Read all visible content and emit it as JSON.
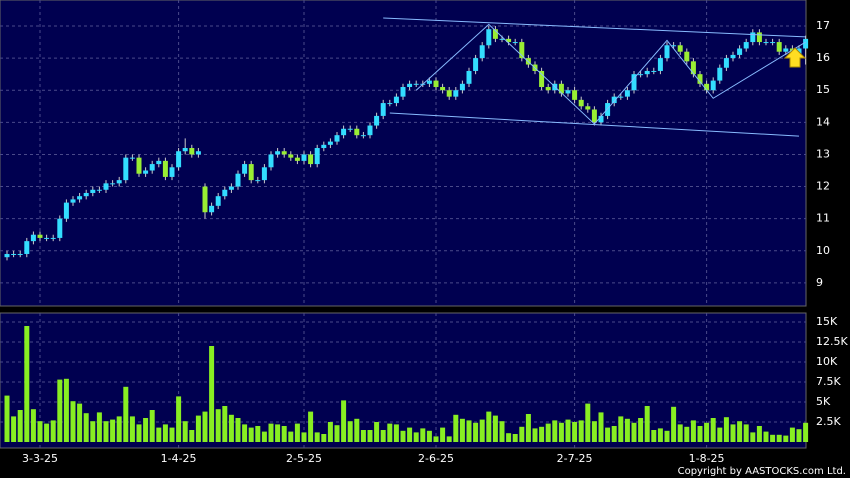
{
  "chart_data": {
    "type": "candlestick",
    "categories": [
      null,
      null,
      null,
      null,
      null,
      "3-3-25",
      null,
      null,
      null,
      null,
      null,
      null,
      null,
      null,
      null,
      null,
      null,
      null,
      null,
      null,
      null,
      null,
      null,
      null,
      null,
      null,
      "1-4-25",
      null,
      null,
      null,
      null,
      null,
      null,
      null,
      null,
      null,
      null,
      null,
      null,
      null,
      null,
      null,
      null,
      null,
      null,
      "2-5-25",
      null,
      null,
      null,
      null,
      null,
      null,
      null,
      null,
      null,
      null,
      null,
      null,
      null,
      null,
      null,
      null,
      null,
      null,
      null,
      "2-6-25",
      null,
      null,
      null,
      null,
      null,
      null,
      null,
      null,
      null,
      null,
      null,
      null,
      null,
      null,
      null,
      null,
      null,
      null,
      null,
      null,
      "2-7-25",
      null,
      null,
      null,
      null,
      null,
      null,
      null,
      null,
      null,
      null,
      null,
      null,
      null,
      null,
      null,
      null,
      null,
      null,
      null,
      "1-8-25",
      null,
      null,
      null,
      null,
      null,
      null,
      null,
      null,
      null,
      null,
      null,
      null,
      null,
      null,
      null
    ],
    "open": [
      9.8,
      9.9,
      9.9,
      9.9,
      10.3,
      10.5,
      10.4,
      10.4,
      10.4,
      11.0,
      11.5,
      11.6,
      11.7,
      11.8,
      11.9,
      11.9,
      12.1,
      12.1,
      12.2,
      12.9,
      12.9,
      12.4,
      12.5,
      12.7,
      12.8,
      12.3,
      12.6,
      13.1,
      13.2,
      13.0,
      12.0,
      11.2,
      11.4,
      11.7,
      11.9,
      12.0,
      12.4,
      12.7,
      12.2,
      12.2,
      12.6,
      13.0,
      13.1,
      13.0,
      12.9,
      12.8,
      13.0,
      12.7,
      13.2,
      13.3,
      13.4,
      13.6,
      13.8,
      13.8,
      13.6,
      13.6,
      13.9,
      14.2,
      14.6,
      14.6,
      14.8,
      15.1,
      15.2,
      15.2,
      15.2,
      15.3,
      15.1,
      15.0,
      14.8,
      15.0,
      15.2,
      15.6,
      16.0,
      16.4,
      16.9,
      16.6,
      16.6,
      16.5,
      16.5,
      16.0,
      15.8,
      15.6,
      15.1,
      15.0,
      15.2,
      14.9,
      15.0,
      14.7,
      14.5,
      14.4,
      14.0,
      14.2,
      14.6,
      14.8,
      14.8,
      15.0,
      15.5,
      15.5,
      15.6,
      15.6,
      16.0,
      16.4,
      16.4,
      16.2,
      15.9,
      15.5,
      15.2,
      15.0,
      15.3,
      15.7,
      16.0,
      16.1,
      16.3,
      16.5,
      16.8,
      16.5,
      16.5,
      16.5,
      16.2,
      16.3,
      16.1,
      16.3
    ],
    "high": [
      10.0,
      10.0,
      10.0,
      10.4,
      10.6,
      10.6,
      10.5,
      10.5,
      11.1,
      11.6,
      11.7,
      11.8,
      11.9,
      12.0,
      12.0,
      12.2,
      12.2,
      12.3,
      13.0,
      13.0,
      13.0,
      12.6,
      12.8,
      12.9,
      12.9,
      12.7,
      13.2,
      13.5,
      13.3,
      13.2,
      12.1,
      11.5,
      11.8,
      12.0,
      12.1,
      12.5,
      12.8,
      12.8,
      12.3,
      12.7,
      13.1,
      13.2,
      13.2,
      13.1,
      13.0,
      13.1,
      13.1,
      13.3,
      13.4,
      13.5,
      13.7,
      13.9,
      13.9,
      13.9,
      13.7,
      14.0,
      14.3,
      14.7,
      14.7,
      14.9,
      15.2,
      15.3,
      15.3,
      15.3,
      15.4,
      15.4,
      15.2,
      15.1,
      15.1,
      15.3,
      15.7,
      16.1,
      16.5,
      17.0,
      17.0,
      16.7,
      16.7,
      16.6,
      16.6,
      16.1,
      15.9,
      15.7,
      15.2,
      15.3,
      15.3,
      15.1,
      15.1,
      14.8,
      14.6,
      14.5,
      14.3,
      14.7,
      14.9,
      14.9,
      15.1,
      15.6,
      15.6,
      15.7,
      15.7,
      16.1,
      16.5,
      16.5,
      16.5,
      16.3,
      16.0,
      15.6,
      15.3,
      15.4,
      15.8,
      16.1,
      16.2,
      16.4,
      16.6,
      16.9,
      16.9,
      16.6,
      16.6,
      16.6,
      16.4,
      16.4,
      16.4,
      16.7
    ],
    "low": [
      9.7,
      9.8,
      9.8,
      9.8,
      10.2,
      10.3,
      10.3,
      10.3,
      10.3,
      10.9,
      11.4,
      11.5,
      11.6,
      11.7,
      11.8,
      11.8,
      12.0,
      12.0,
      12.1,
      12.8,
      12.3,
      12.3,
      12.4,
      12.6,
      12.2,
      12.2,
      12.5,
      13.0,
      12.9,
      12.9,
      11.0,
      11.1,
      11.3,
      11.6,
      11.8,
      11.9,
      12.3,
      12.1,
      12.1,
      12.1,
      12.5,
      12.9,
      12.9,
      12.8,
      12.7,
      12.7,
      12.6,
      12.6,
      13.1,
      13.2,
      13.3,
      13.5,
      13.7,
      13.5,
      13.5,
      13.5,
      13.8,
      14.1,
      14.5,
      14.5,
      14.7,
      15.0,
      15.1,
      15.1,
      15.1,
      15.0,
      14.9,
      14.7,
      14.7,
      14.9,
      15.1,
      15.5,
      15.9,
      16.3,
      16.5,
      16.5,
      16.4,
      16.4,
      15.9,
      15.7,
      15.5,
      15.0,
      14.9,
      14.9,
      14.8,
      14.8,
      14.6,
      14.4,
      14.3,
      13.9,
      13.9,
      14.1,
      14.5,
      14.7,
      14.7,
      14.9,
      15.4,
      15.4,
      15.5,
      15.5,
      15.9,
      16.3,
      16.1,
      15.8,
      15.4,
      15.1,
      14.9,
      14.9,
      15.2,
      15.6,
      15.9,
      16.0,
      16.2,
      16.4,
      16.4,
      16.4,
      16.4,
      16.1,
      16.1,
      16.0,
      16.0,
      15.8
    ],
    "close": [
      9.9,
      9.9,
      9.9,
      10.3,
      10.5,
      10.4,
      10.4,
      10.4,
      11.0,
      11.5,
      11.6,
      11.7,
      11.8,
      11.9,
      11.9,
      12.1,
      12.1,
      12.2,
      12.9,
      12.9,
      12.4,
      12.5,
      12.7,
      12.8,
      12.3,
      12.6,
      13.1,
      13.2,
      13.0,
      13.1,
      11.2,
      11.4,
      11.7,
      11.9,
      12.0,
      12.4,
      12.7,
      12.2,
      12.2,
      12.6,
      13.0,
      13.1,
      13.0,
      12.9,
      12.8,
      13.0,
      12.7,
      13.2,
      13.3,
      13.4,
      13.6,
      13.8,
      13.8,
      13.6,
      13.6,
      13.9,
      14.2,
      14.6,
      14.6,
      14.8,
      15.1,
      15.2,
      15.2,
      15.2,
      15.3,
      15.1,
      15.0,
      14.8,
      15.0,
      15.2,
      15.6,
      16.0,
      16.4,
      16.9,
      16.6,
      16.6,
      16.5,
      16.5,
      16.0,
      15.8,
      15.6,
      15.1,
      15.0,
      15.2,
      14.9,
      15.0,
      14.7,
      14.5,
      14.4,
      14.0,
      14.2,
      14.6,
      14.8,
      14.8,
      15.0,
      15.5,
      15.5,
      15.6,
      15.6,
      16.0,
      16.4,
      16.4,
      16.2,
      15.9,
      15.5,
      15.2,
      15.0,
      15.3,
      15.7,
      16.0,
      16.1,
      16.3,
      16.5,
      16.8,
      16.5,
      16.5,
      16.5,
      16.2,
      16.3,
      16.1,
      16.3,
      16.6
    ],
    "up_color": "#33ddff",
    "down_color": "#99ee33",
    "ylim": [
      8.28,
      17.81
    ],
    "yticks": [
      9,
      10,
      11,
      12,
      13,
      14,
      15,
      16,
      17
    ],
    "grid": true,
    "trendline_color": "#88bbff",
    "trendlines": [
      {
        "x": [
          57,
          121
        ],
        "values": [
          17.25,
          16.66
        ]
      },
      {
        "x": [
          58,
          120
        ],
        "values": [
          14.29,
          13.57
        ]
      },
      {
        "x": [
          62,
          73,
          89,
          100,
          107,
          121
        ],
        "values": [
          15.0,
          17.05,
          13.95,
          16.55,
          14.75,
          16.5
        ]
      }
    ],
    "volume": {
      "color": "#88ee22",
      "values": [
        5800,
        3200,
        4000,
        14500,
        4100,
        2600,
        2300,
        2700,
        7800,
        7900,
        5100,
        4800,
        3600,
        2600,
        3700,
        2600,
        2800,
        3200,
        6900,
        3200,
        2200,
        3000,
        4000,
        1800,
        2200,
        1800,
        5700,
        2600,
        1500,
        3300,
        3800,
        12000,
        4100,
        4500,
        3400,
        3000,
        2200,
        1800,
        2000,
        1300,
        2300,
        2200,
        2000,
        1300,
        2300,
        1200,
        3800,
        1200,
        1000,
        2500,
        2100,
        5200,
        2600,
        2900,
        1500,
        1500,
        2500,
        1500,
        2300,
        2200,
        1400,
        1800,
        1200,
        1700,
        1400,
        700,
        1800,
        700,
        3400,
        2900,
        2700,
        2400,
        2800,
        3800,
        3300,
        2600,
        1100,
        1000,
        1900,
        3500,
        1700,
        1900,
        2300,
        2700,
        2400,
        2800,
        2500,
        2700,
        4800,
        2600,
        3700,
        1800,
        2000,
        3200,
        2900,
        2400,
        3000,
        4500,
        1500,
        1700,
        1400,
        4400,
        2200,
        1900,
        2700,
        2000,
        2400,
        3000,
        1800,
        3100,
        2200,
        2600,
        2200,
        1200,
        2000,
        1300,
        900,
        900,
        800,
        1800,
        1600,
        2400
      ],
      "ylim": [
        -750,
        16125
      ],
      "yticks": [
        {
          "value": 2500,
          "label": "2.5K"
        },
        {
          "value": 5000,
          "label": "5K"
        },
        {
          "value": 7500,
          "label": "7.5K"
        },
        {
          "value": 10000,
          "label": "10K"
        },
        {
          "value": 12500,
          "label": "12.5K"
        },
        {
          "value": 15000,
          "label": "15K"
        }
      ]
    },
    "copyright": "Copyright by AASTOCKS.com Ltd."
  }
}
